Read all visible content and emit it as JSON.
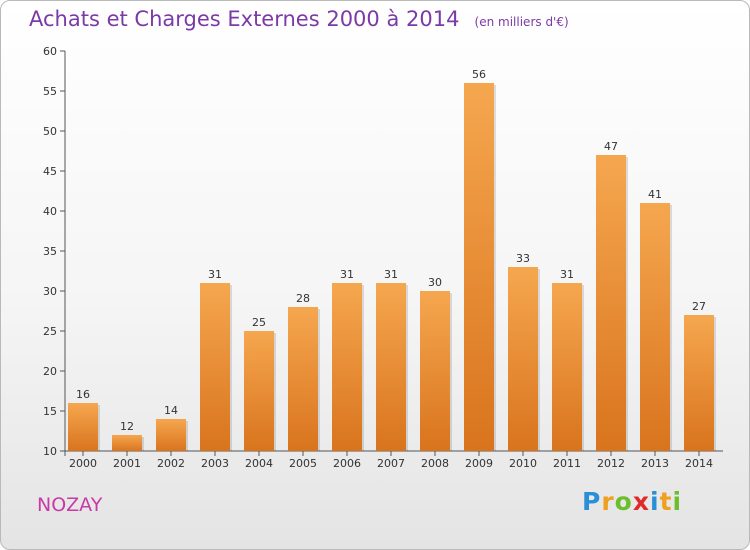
{
  "header": {
    "title": "Achats et Charges Externes 2000 à 2014",
    "subtitle": "(en milliers d'€)"
  },
  "footer": {
    "city": "NOZAY",
    "logo": {
      "text": "Proxiti",
      "letters": [
        {
          "ch": "P",
          "color": "#2a8fd6"
        },
        {
          "ch": "r",
          "color": "#f0a020"
        },
        {
          "ch": "o",
          "color": "#6cbf2c"
        },
        {
          "ch": "x",
          "color": "#e02a2a"
        },
        {
          "ch": "i",
          "color": "#2a8fd6"
        },
        {
          "ch": "t",
          "color": "#f0a020"
        },
        {
          "ch": "i",
          "color": "#6cbf2c"
        }
      ]
    }
  },
  "colors": {
    "bar_top": "#f5a74f",
    "bar_bottom": "#d9741e",
    "title": "#7b3aa6",
    "city": "#c83aa6"
  },
  "chart_data": {
    "type": "bar",
    "title": "Achats et Charges Externes 2000 à 2014",
    "subtitle": "(en milliers d'€)",
    "categories": [
      "2000",
      "2001",
      "2002",
      "2003",
      "2004",
      "2005",
      "2006",
      "2007",
      "2008",
      "2009",
      "2010",
      "2011",
      "2012",
      "2013",
      "2014"
    ],
    "values": [
      16,
      12,
      14,
      31,
      25,
      28,
      31,
      31,
      30,
      56,
      33,
      31,
      47,
      41,
      27
    ],
    "value_labels": [
      "16",
      "12",
      "14",
      "31",
      "25",
      "28",
      "31",
      "31",
      "30",
      "56",
      "33",
      "31",
      "47",
      "41",
      "27"
    ],
    "ylim": [
      10,
      60
    ],
    "yticks": [
      "10",
      "15",
      "20",
      "25",
      "30",
      "35",
      "40",
      "45",
      "50",
      "55",
      "60"
    ],
    "grid": false,
    "legend": "none",
    "xlabel": "",
    "ylabel": ""
  }
}
